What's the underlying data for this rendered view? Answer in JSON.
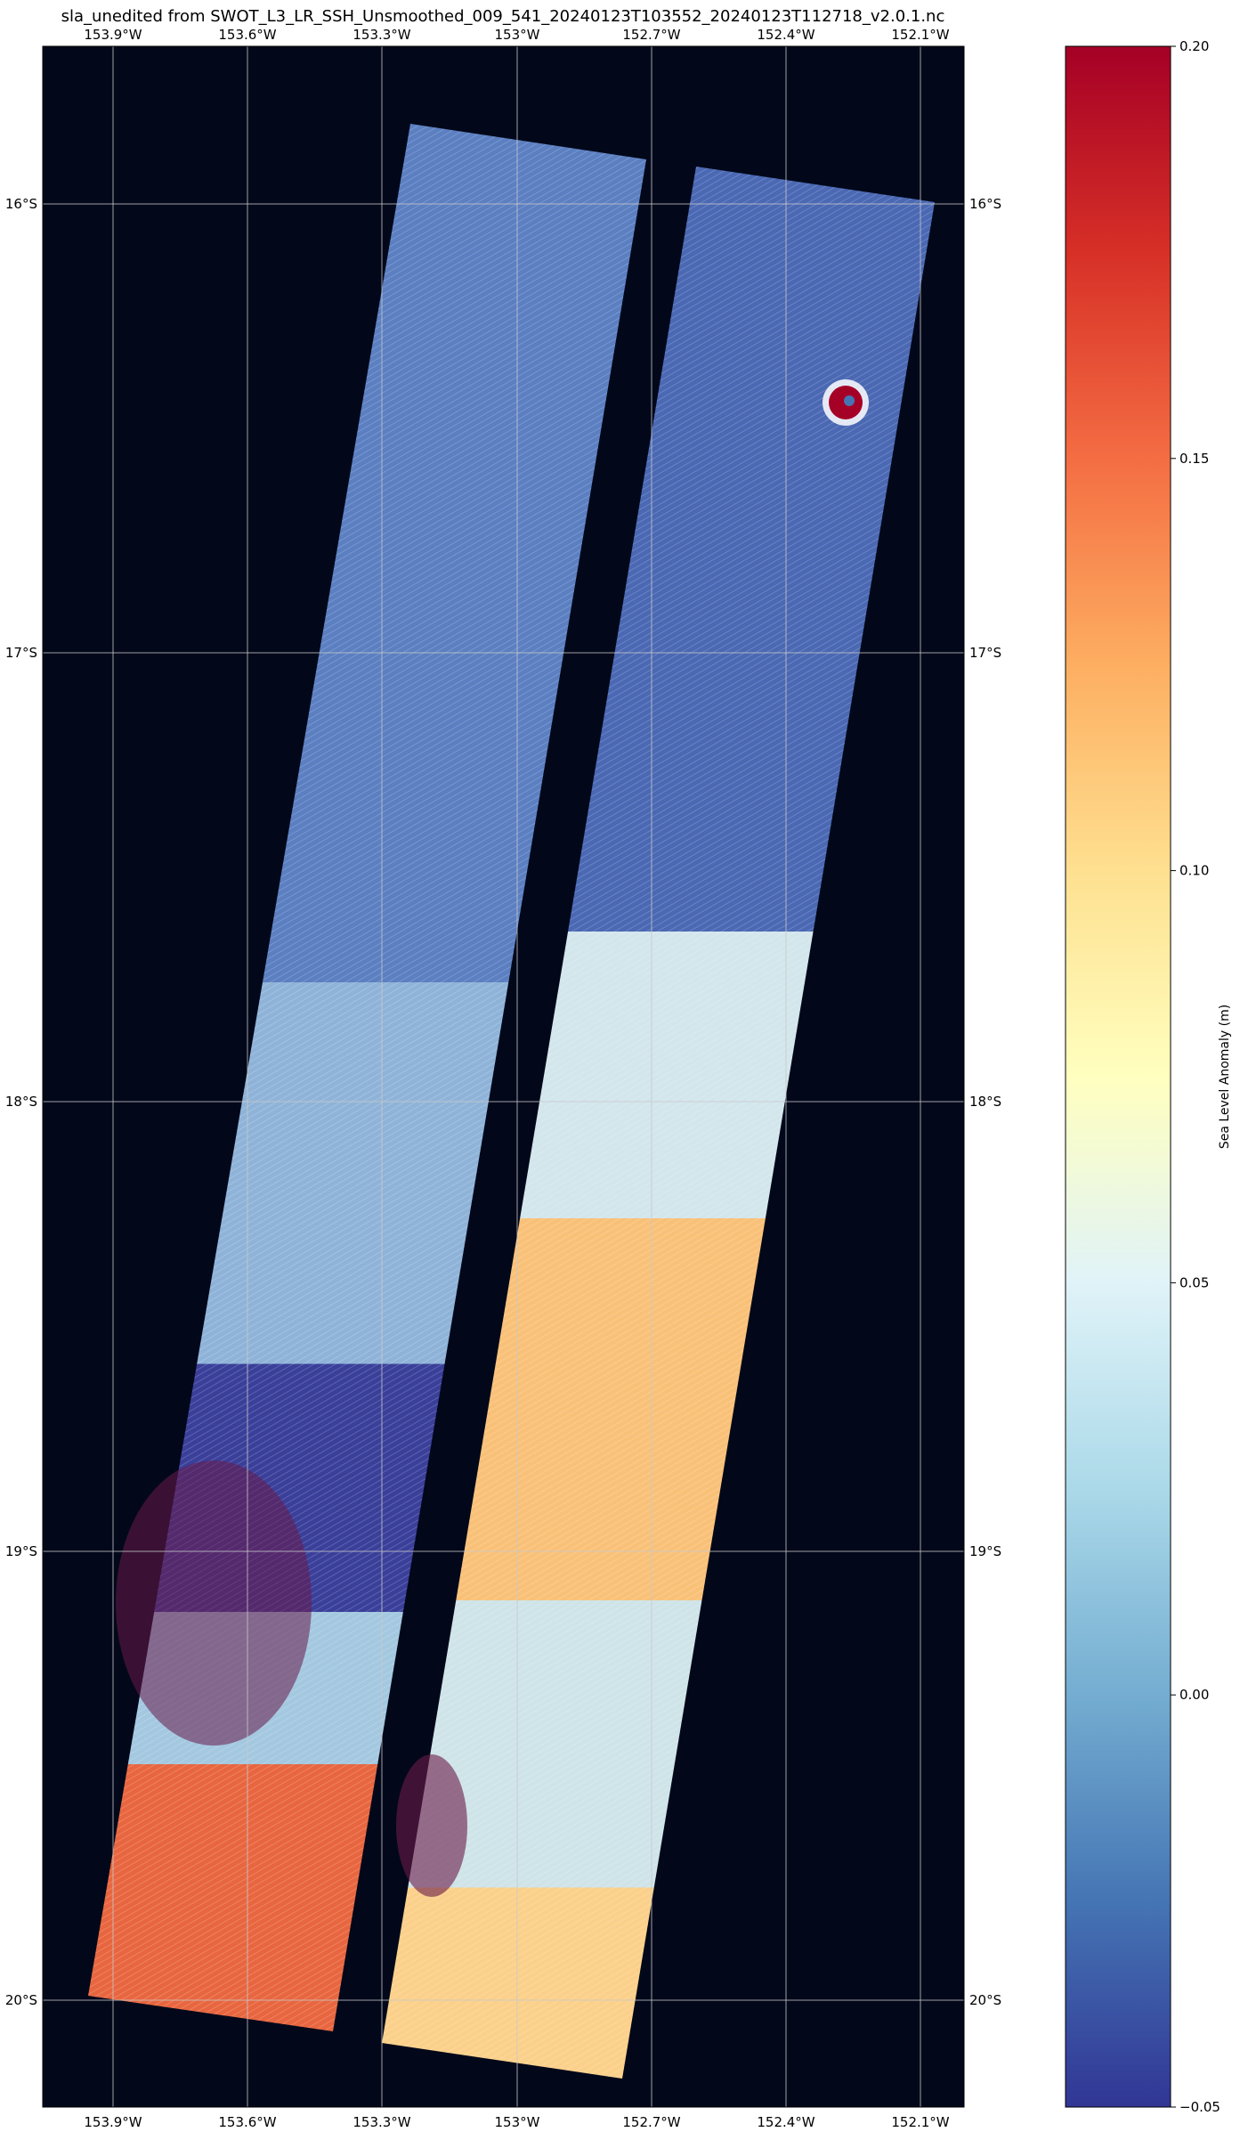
{
  "title": "sla_unedited from SWOT_L3_LR_SSH_Unsmoothed_009_541_20240123T103552_20240123T112718_v2.0.1.nc",
  "map": {
    "background_color": "#02081a",
    "grid_color": "#c8c8c8",
    "lon_labels": [
      "153.9°W",
      "153.6°W",
      "153.3°W",
      "153°W",
      "152.7°W",
      "152.4°W",
      "152.1°W"
    ],
    "lat_labels": [
      "16°S",
      "17°S",
      "18°S",
      "19°S",
      "20°S"
    ],
    "swaths": [
      {
        "name": "left swath",
        "bands": [
          {
            "from": 0.0,
            "to": 0.45,
            "color": "#5b7fc1"
          },
          {
            "from": 0.45,
            "to": 0.65,
            "color": "#8fb3d8"
          },
          {
            "from": 0.65,
            "to": 0.78,
            "color": "#3a3f9a"
          },
          {
            "from": 0.78,
            "to": 0.86,
            "color": "#a3c8e0"
          },
          {
            "from": 0.86,
            "to": 1.0,
            "color": "#e8663f"
          }
        ]
      },
      {
        "name": "right swath",
        "bands": [
          {
            "from": 0.0,
            "to": 0.4,
            "color": "#4a68b3"
          },
          {
            "from": 0.4,
            "to": 0.55,
            "color": "#d2e6ec"
          },
          {
            "from": 0.55,
            "to": 0.75,
            "color": "#f9c178"
          },
          {
            "from": 0.75,
            "to": 0.9,
            "color": "#cfe4e8"
          },
          {
            "from": 0.9,
            "to": 1.0,
            "color": "#fbd08a"
          }
        ]
      }
    ]
  },
  "colorbar": {
    "label": "Sea Level Anomaly (m)",
    "min": -0.05,
    "max": 0.2,
    "ticks": [
      "0.20",
      "0.15",
      "0.10",
      "0.05",
      "0.00",
      "−0.05"
    ],
    "tick_values": [
      0.2,
      0.15,
      0.1,
      0.05,
      0.0,
      -0.05
    ],
    "colormap": "RdYlBu_r",
    "stops": [
      "#313695",
      "#4575b4",
      "#74add1",
      "#abd9e9",
      "#e0f3f8",
      "#ffffbf",
      "#fee090",
      "#fdae61",
      "#f46d43",
      "#d73027",
      "#a50026"
    ]
  }
}
